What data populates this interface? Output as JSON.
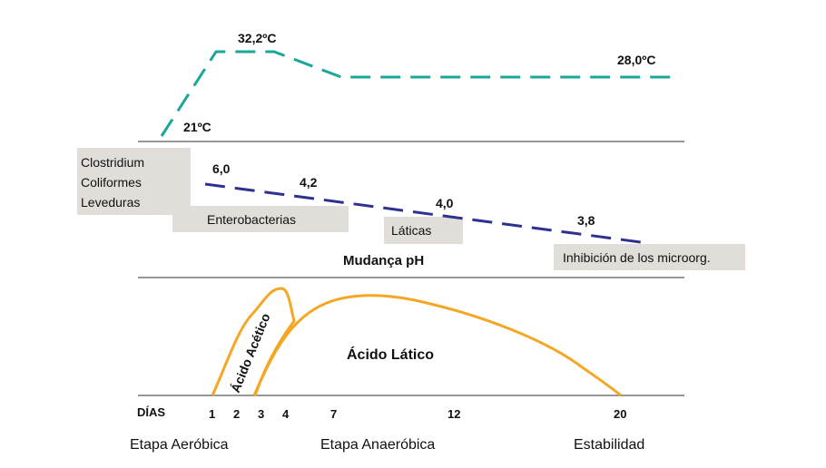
{
  "temperature": {
    "start": "21ºC",
    "peak": "32,2ºC",
    "end": "28,0ºC"
  },
  "ph": {
    "title": "Mudança pH",
    "values": [
      "6,0",
      "4,2",
      "4,0",
      "3,8"
    ]
  },
  "microorganisms": {
    "group1": [
      "Clostridium",
      "Coliformes",
      "Leveduras"
    ],
    "enterobacterias": "Enterobacterias",
    "laticas": "Láticas",
    "inhibition": "Inhibición de los microorg."
  },
  "acids": {
    "acetic": "Ácido Acético",
    "lactic": "Ácido Lático"
  },
  "days": {
    "label": "DÍAS",
    "ticks": [
      "1",
      "2",
      "3",
      "4",
      "7",
      "12",
      "20"
    ]
  },
  "stages": {
    "aerobic": "Etapa Aeróbica",
    "anaerobic": "Etapa Anaeróbica",
    "stability": "Estabilidad"
  },
  "colors": {
    "temperature_line": "#1aa79a",
    "ph_line": "#2e3192",
    "acid_curves": "#f5a623",
    "divider": "#595959",
    "label_box": "#e1ded9"
  }
}
